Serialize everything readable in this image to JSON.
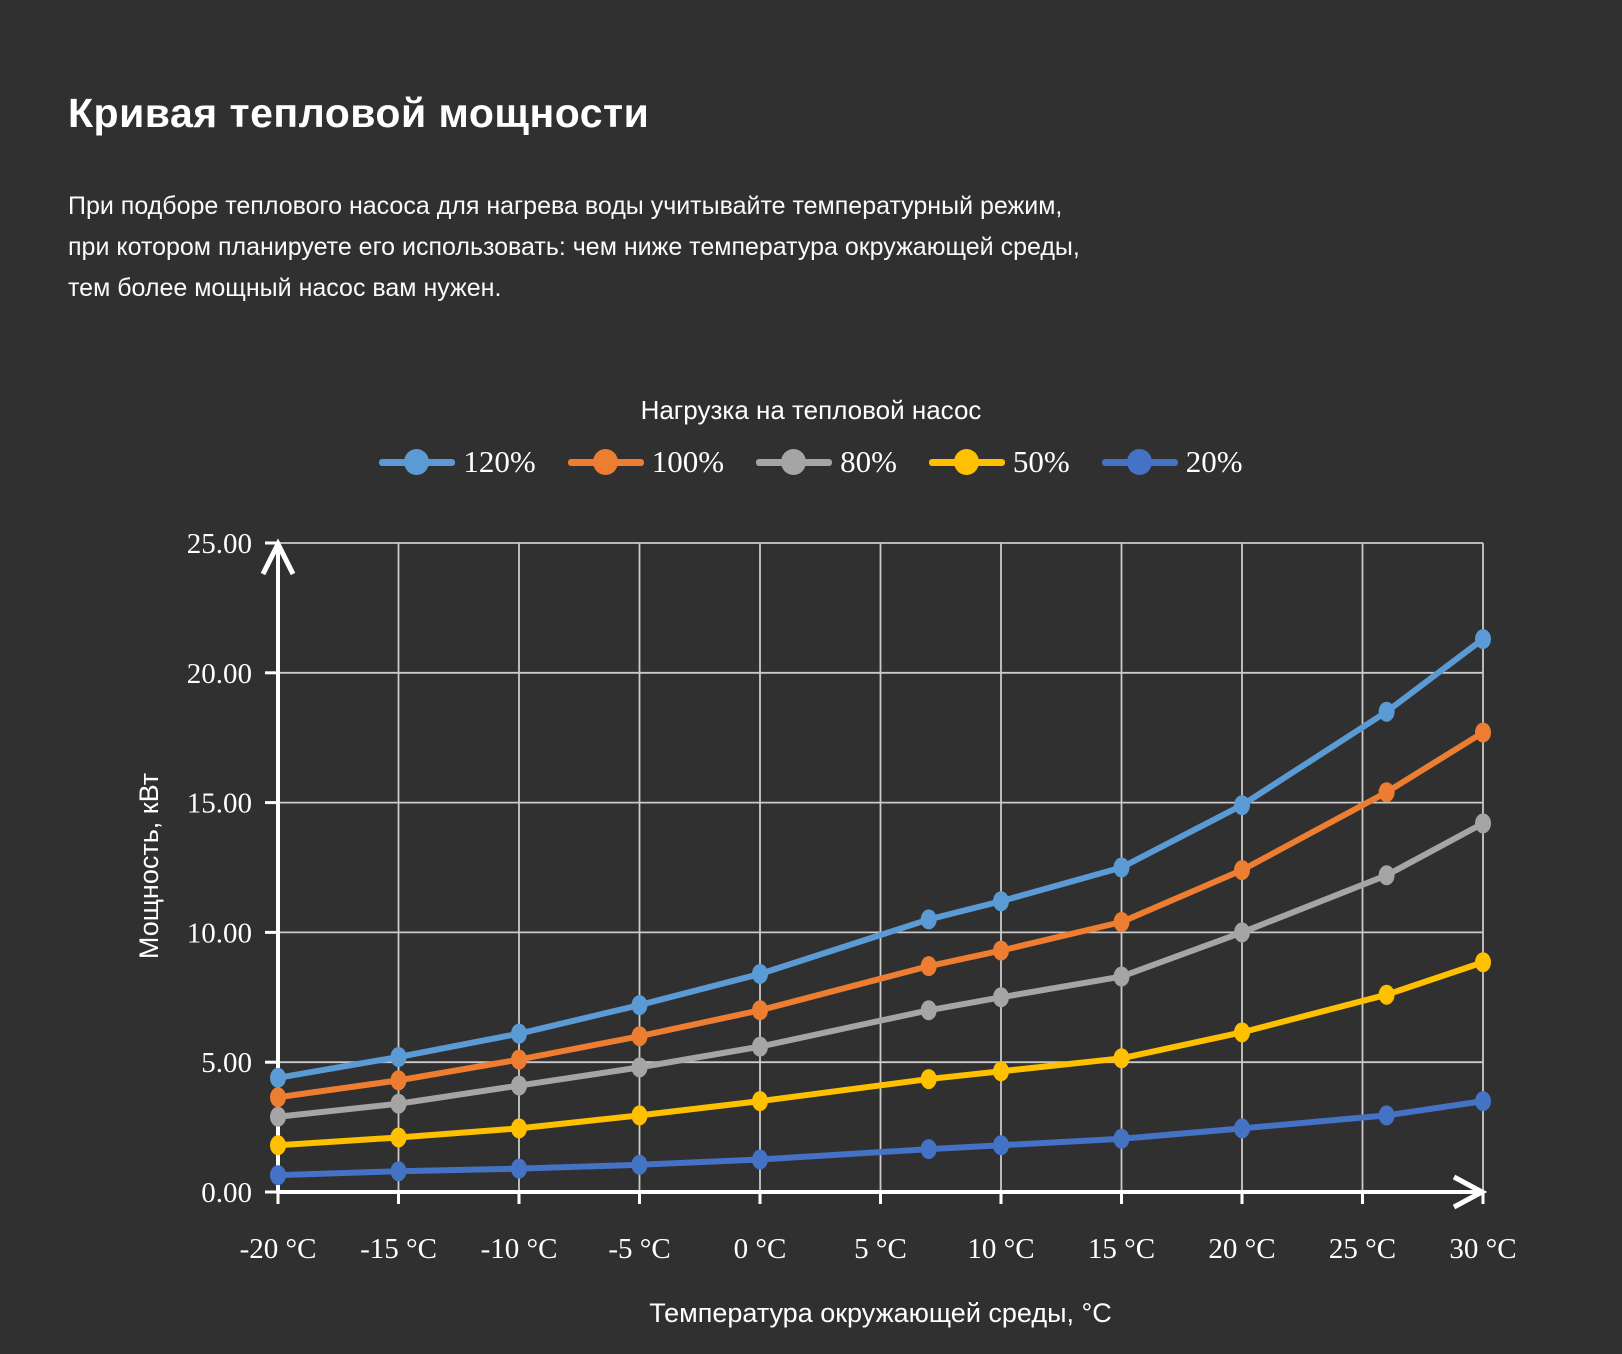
{
  "page": {
    "title": "Кривая тепловой мощности",
    "description_lines": [
      "При подборе теплового насоса для нагрева воды учитывайте температурный режим,",
      "при котором планируете его использовать: чем ниже температура окружающей среды,",
      "тем более мощный насос вам нужен."
    ]
  },
  "chart_data": {
    "type": "line",
    "legend_title": "Нагрузка на тепловой насос",
    "xlabel": "Температура окружающей среды, °C",
    "ylabel": "Мощность, кВт",
    "xlim": [
      -20,
      30
    ],
    "ylim": [
      0,
      25
    ],
    "grid": true,
    "legend_position": "top",
    "x": [
      -20,
      -15,
      -10,
      -5,
      0,
      7,
      10,
      15,
      20,
      26,
      30
    ],
    "x_axis_ticks": [
      -20,
      -15,
      -10,
      -5,
      0,
      5,
      10,
      15,
      20,
      25,
      30
    ],
    "x_tick_labels": [
      "-20 °C",
      "-15 °C",
      "-10 °C",
      "-5 °C",
      "0 °C",
      "5 °C",
      "10 °C",
      "15 °C",
      "20 °C",
      "25 °C",
      "30 °C"
    ],
    "y_ticks": [
      0,
      5,
      10,
      15,
      20,
      25
    ],
    "y_tick_labels": [
      "0.00",
      "5.00",
      "10.00",
      "15.00",
      "20.00",
      "25.00"
    ],
    "series": [
      {
        "name": "120%",
        "color": "#5B9BD5",
        "values": [
          4.4,
          5.2,
          6.1,
          7.2,
          8.4,
          10.5,
          11.2,
          12.5,
          14.9,
          18.5,
          21.3
        ]
      },
      {
        "name": "100%",
        "color": "#ED7D31",
        "values": [
          3.65,
          4.3,
          5.1,
          6.0,
          7.0,
          8.7,
          9.3,
          10.4,
          12.4,
          15.4,
          17.7
        ]
      },
      {
        "name": "80%",
        "color": "#A5A5A5",
        "values": [
          2.9,
          3.4,
          4.1,
          4.8,
          5.6,
          7.0,
          7.5,
          8.3,
          10.0,
          12.2,
          14.2
        ]
      },
      {
        "name": "50%",
        "color": "#FFC000",
        "values": [
          1.8,
          2.1,
          2.45,
          2.95,
          3.5,
          4.35,
          4.65,
          5.15,
          6.15,
          7.6,
          8.85
        ]
      },
      {
        "name": "20%",
        "color": "#4472C4",
        "values": [
          0.65,
          0.8,
          0.9,
          1.05,
          1.25,
          1.65,
          1.8,
          2.05,
          2.45,
          2.95,
          3.5
        ]
      }
    ]
  },
  "colors": {
    "background": "#313030",
    "text": "#ffffff",
    "grid": "#cbc9c9",
    "axis": "#ffffff"
  }
}
